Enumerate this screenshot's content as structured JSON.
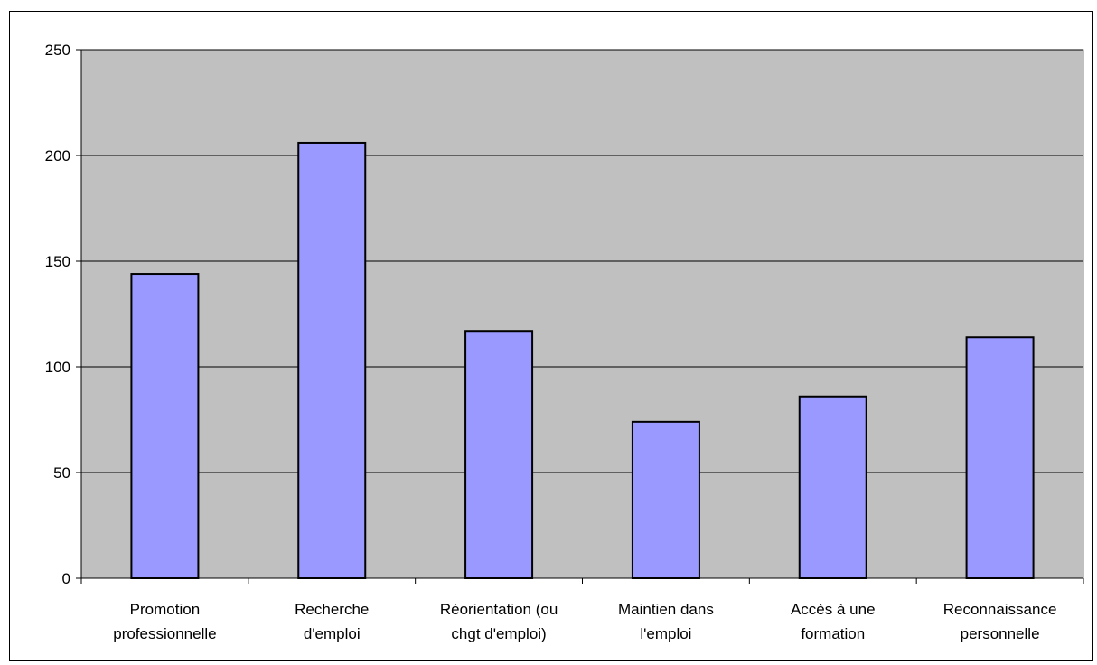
{
  "chart_data": {
    "type": "bar",
    "title": "",
    "xlabel": "",
    "ylabel": "",
    "categories": [
      [
        "Promotion",
        "professionnelle"
      ],
      [
        "Recherche",
        "d'emploi"
      ],
      [
        "Réorientation (ou",
        "chgt d'emploi)"
      ],
      [
        "Maintien dans",
        "l'emploi"
      ],
      [
        "Accès à une",
        "formation"
      ],
      [
        "Reconnaissance",
        "personnelle"
      ]
    ],
    "values": [
      144,
      206,
      117,
      74,
      86,
      114
    ],
    "ylim": [
      0,
      250
    ],
    "yticks": [
      0,
      50,
      100,
      150,
      200,
      250
    ],
    "grid": true,
    "legend": "none",
    "colors": {
      "plot_bg": "#c0c0c0",
      "bar_fill": "#9999ff",
      "bar_stroke": "#000000",
      "grid": "#000000"
    }
  }
}
